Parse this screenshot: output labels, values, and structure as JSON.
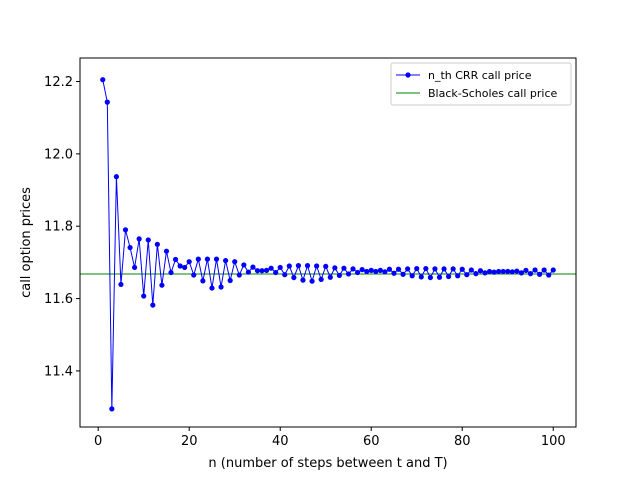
{
  "chart_data": {
    "type": "line",
    "title": "",
    "xlabel": "n (number of steps between t and T)",
    "ylabel": "call option prices",
    "xlim": [
      -4.0,
      105.0
    ],
    "ylim": [
      11.245,
      12.265
    ],
    "xticks": [
      0,
      20,
      40,
      60,
      80,
      100
    ],
    "xtick_labels": [
      "0",
      "20",
      "40",
      "60",
      "80",
      "100"
    ],
    "yticks": [
      11.4,
      11.6,
      11.8,
      12.0,
      12.2
    ],
    "ytick_labels": [
      "11.4",
      "11.6",
      "11.8",
      "12.0",
      "12.2"
    ],
    "grid": false,
    "legend_position": "top-right",
    "series": [
      {
        "name": "n_th CRR call price",
        "style": "line-with-markers",
        "color": "#0000ff",
        "x": [
          1,
          2,
          3,
          4,
          5,
          6,
          7,
          8,
          9,
          10,
          11,
          12,
          13,
          14,
          15,
          16,
          17,
          18,
          19,
          20,
          21,
          22,
          23,
          24,
          25,
          26,
          27,
          28,
          29,
          30,
          31,
          32,
          33,
          34,
          35,
          36,
          37,
          38,
          39,
          40,
          41,
          42,
          43,
          44,
          45,
          46,
          47,
          48,
          49,
          50,
          51,
          52,
          53,
          54,
          55,
          56,
          57,
          58,
          59,
          60,
          61,
          62,
          63,
          64,
          65,
          66,
          67,
          68,
          69,
          70,
          71,
          72,
          73,
          74,
          75,
          76,
          77,
          78,
          79,
          80,
          81,
          82,
          83,
          84,
          85,
          86,
          87,
          88,
          89,
          90,
          91,
          92,
          93,
          94,
          95,
          96,
          97,
          98,
          99,
          100
        ],
        "y": [
          12.205,
          12.143,
          11.295,
          11.937,
          11.639,
          11.79,
          11.741,
          11.686,
          11.765,
          11.607,
          11.762,
          11.582,
          11.75,
          11.637,
          11.731,
          11.672,
          11.708,
          11.69,
          11.686,
          11.702,
          11.665,
          11.709,
          11.649,
          11.709,
          11.629,
          11.709,
          11.632,
          11.705,
          11.65,
          11.702,
          11.665,
          11.693,
          11.673,
          11.687,
          11.677,
          11.677,
          11.678,
          11.684,
          11.672,
          11.686,
          11.666,
          11.69,
          11.658,
          11.691,
          11.651,
          11.691,
          11.648,
          11.69,
          11.653,
          11.689,
          11.659,
          11.685,
          11.664,
          11.684,
          11.668,
          11.682,
          11.672,
          11.68,
          11.675,
          11.678,
          11.675,
          11.678,
          11.674,
          11.681,
          11.67,
          11.681,
          11.667,
          11.682,
          11.663,
          11.683,
          11.66,
          11.683,
          11.658,
          11.682,
          11.659,
          11.682,
          11.661,
          11.682,
          11.663,
          11.681,
          11.666,
          11.679,
          11.669,
          11.677,
          11.671,
          11.675,
          11.673,
          11.675,
          11.675,
          11.675,
          11.674,
          11.676,
          11.671,
          11.678,
          11.669,
          11.679,
          11.667,
          11.679,
          11.665,
          11.679
        ]
      },
      {
        "name": "Black-Scholes call price",
        "style": "horizontal-line",
        "color": "#008000",
        "y": 11.668
      }
    ]
  }
}
